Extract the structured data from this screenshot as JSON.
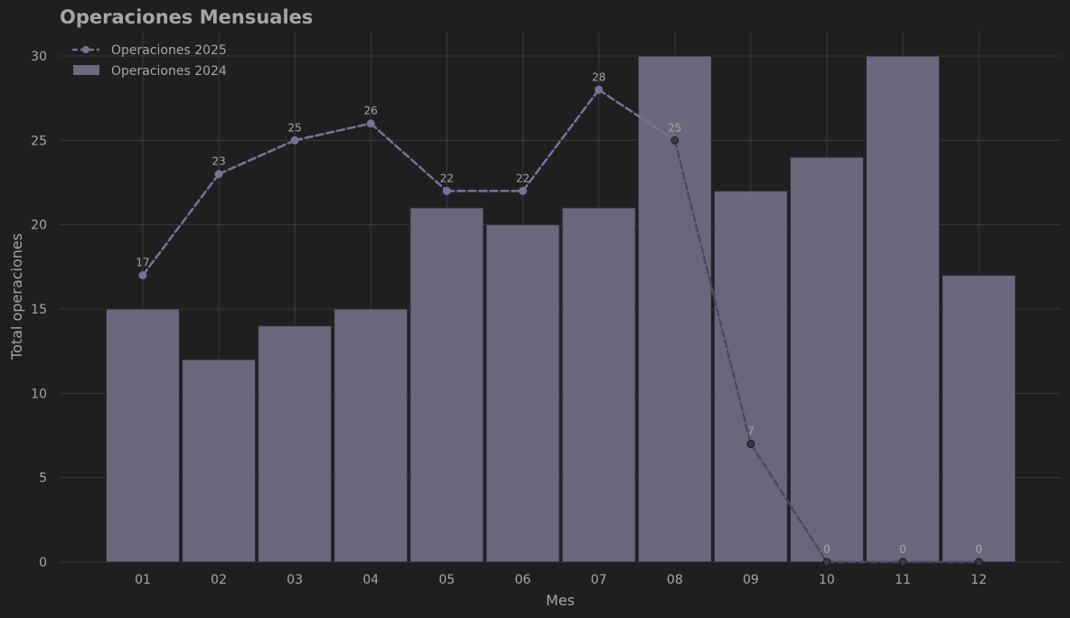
{
  "chart_data": {
    "type": "bar",
    "title": "Operaciones Mensuales",
    "xlabel": "Mes",
    "ylabel": "Total operaciones",
    "categories": [
      "01",
      "02",
      "03",
      "04",
      "05",
      "06",
      "07",
      "08",
      "09",
      "10",
      "11",
      "12"
    ],
    "ylim": [
      0,
      31.5
    ],
    "yticks": [
      0,
      5,
      10,
      15,
      20,
      25,
      30
    ],
    "grid": true,
    "legend_position": "top-left",
    "series": [
      {
        "name": "Operaciones 2024",
        "kind": "bar",
        "color": "#6e6880",
        "values": [
          15,
          12,
          14,
          15,
          21,
          20,
          21,
          30,
          22,
          24,
          30,
          17
        ]
      },
      {
        "name": "Operaciones 2025",
        "kind": "line",
        "style": "dashed",
        "color": "#7a7196",
        "values": [
          17,
          23,
          25,
          26,
          22,
          22,
          28,
          25,
          7,
          0,
          0,
          0
        ],
        "data_labels": [
          "17",
          "23",
          "25",
          "26",
          "22",
          "22",
          "28",
          "25",
          "7",
          "0",
          "0",
          "0"
        ]
      }
    ]
  },
  "colors": {
    "background": "#1f1f1f",
    "grid": "#3a3a3a",
    "text": "#a6a6a6",
    "bar": "#6e6880",
    "line": "#7a7196",
    "line_faded": "#4e4863"
  }
}
